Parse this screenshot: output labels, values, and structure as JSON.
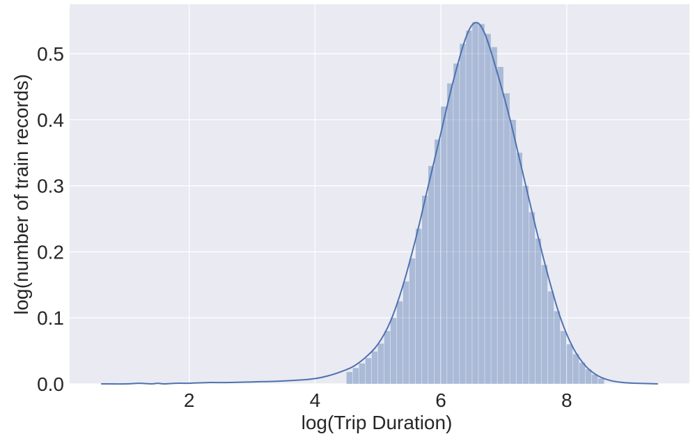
{
  "chart_data": {
    "type": "area",
    "title": "",
    "xlabel": "log(Trip Duration)",
    "ylabel": "log(number of train records)",
    "xlim": [
      0.1,
      9.95
    ],
    "ylim": [
      0.0,
      0.575
    ],
    "xticks": [
      {
        "value": 2,
        "label": "2"
      },
      {
        "value": 4,
        "label": "4"
      },
      {
        "value": 6,
        "label": "6"
      },
      {
        "value": 8,
        "label": "8"
      }
    ],
    "yticks": [
      {
        "value": 0.0,
        "label": "0.0"
      },
      {
        "value": 0.1,
        "label": "0.1"
      },
      {
        "value": 0.2,
        "label": "0.2"
      },
      {
        "value": 0.3,
        "label": "0.3"
      },
      {
        "value": 0.4,
        "label": "0.4"
      },
      {
        "value": 0.5,
        "label": "0.5"
      }
    ],
    "grid": true,
    "histogram": {
      "bin_edges": [
        4.5,
        4.6,
        4.7,
        4.8,
        4.9,
        5.0,
        5.1,
        5.2,
        5.3,
        5.4,
        5.5,
        5.6,
        5.7,
        5.8,
        5.9,
        6.0,
        6.1,
        6.2,
        6.3,
        6.4,
        6.5,
        6.6,
        6.7,
        6.8,
        6.9,
        7.0,
        7.1,
        7.2,
        7.3,
        7.4,
        7.5,
        7.6,
        7.7,
        7.8,
        7.9,
        8.0,
        8.1,
        8.2,
        8.3,
        8.4,
        8.5,
        8.6
      ],
      "counts": [
        0.018,
        0.024,
        0.031,
        0.039,
        0.049,
        0.061,
        0.08,
        0.1,
        0.125,
        0.155,
        0.19,
        0.235,
        0.285,
        0.33,
        0.37,
        0.42,
        0.455,
        0.485,
        0.515,
        0.535,
        0.548,
        0.545,
        0.53,
        0.51,
        0.48,
        0.44,
        0.4,
        0.35,
        0.3,
        0.26,
        0.22,
        0.18,
        0.14,
        0.11,
        0.08,
        0.06,
        0.045,
        0.032,
        0.022,
        0.014,
        0.008
      ]
    },
    "kde": {
      "x": [
        0.6,
        1.0,
        1.2,
        1.4,
        1.5,
        1.6,
        1.8,
        2.0,
        2.3,
        2.6,
        3.0,
        3.4,
        3.8,
        4.0,
        4.2,
        4.4,
        4.6,
        4.8,
        5.0,
        5.2,
        5.4,
        5.6,
        5.8,
        6.0,
        6.2,
        6.4,
        6.55,
        6.7,
        6.9,
        7.1,
        7.3,
        7.5,
        7.7,
        7.9,
        8.1,
        8.3,
        8.5,
        8.7,
        8.9,
        9.1,
        9.45
      ],
      "y": [
        0.0,
        0.0,
        0.001,
        0.0,
        0.001,
        0.0,
        0.001,
        0.001,
        0.002,
        0.002,
        0.003,
        0.004,
        0.006,
        0.008,
        0.012,
        0.018,
        0.026,
        0.04,
        0.06,
        0.095,
        0.15,
        0.22,
        0.3,
        0.38,
        0.46,
        0.525,
        0.547,
        0.53,
        0.47,
        0.4,
        0.32,
        0.24,
        0.165,
        0.1,
        0.055,
        0.027,
        0.012,
        0.005,
        0.002,
        0.001,
        0.0
      ]
    },
    "bar_color": "#4c72b0",
    "bar_opacity": 0.4,
    "line_color": "#4c72b0",
    "plot_background": "#eaeaf2",
    "grid_color": "#ffffff"
  }
}
